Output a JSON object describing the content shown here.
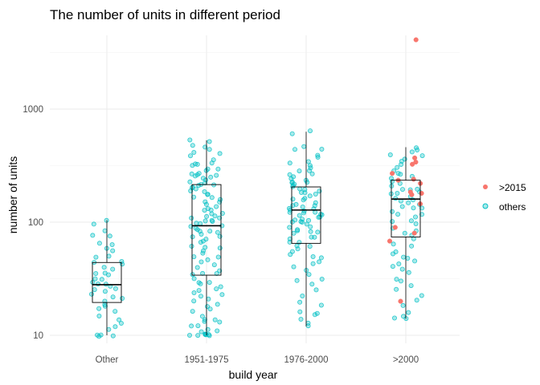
{
  "chart_data": {
    "type": "box_jitter",
    "title": "The number of units in different period",
    "xlabel": "build year",
    "ylabel": "number of units",
    "y_scale": "log10",
    "ylim": [
      8.2,
      5300
    ],
    "y_ticks": [
      10,
      100,
      1000
    ],
    "y_tick_labels": [
      "10",
      "100",
      "1000"
    ],
    "grid": true,
    "legend_position": "right",
    "categories": [
      "Other",
      "1951-1975",
      "1976-2000",
      ">2000"
    ],
    "legend": [
      {
        "label": ">2015",
        "color": "#F8766D"
      },
      {
        "label": "others",
        "color": "#00BFC4"
      }
    ],
    "boxes": [
      {
        "category": "Other",
        "min": 10,
        "q1": 19.5,
        "median": 28,
        "q3": 44,
        "max": 104
      },
      {
        "category": "1951-1975",
        "min": 10,
        "q1": 34,
        "median": 93,
        "q3": 215,
        "max": 530
      },
      {
        "category": "1976-2000",
        "min": 12,
        "q1": 65,
        "median": 128,
        "q3": 205,
        "max": 630
      },
      {
        "category": ">2000",
        "min": 14,
        "q1": 74,
        "median": 160,
        "q3": 235,
        "max": 460
      }
    ],
    "series": [
      {
        "name": ">2015",
        "color": "#F8766D",
        "points": [
          {
            "x": ">2000",
            "y": 4100
          },
          {
            "x": ">2000",
            "y": 370
          },
          {
            "x": ">2000",
            "y": 340
          },
          {
            "x": ">2000",
            "y": 325
          },
          {
            "x": ">2000",
            "y": 270
          },
          {
            "x": ">2000",
            "y": 240
          },
          {
            "x": ">2000",
            "y": 235
          },
          {
            "x": ">2000",
            "y": 220
          },
          {
            "x": ">2000",
            "y": 185
          },
          {
            "x": ">2000",
            "y": 180
          },
          {
            "x": ">2000",
            "y": 175
          },
          {
            "x": ">2000",
            "y": 145
          },
          {
            "x": ">2000",
            "y": 90
          },
          {
            "x": ">2000",
            "y": 80
          },
          {
            "x": ">2000",
            "y": 68
          },
          {
            "x": ">2000",
            "y": 20
          }
        ]
      },
      {
        "name": "others",
        "color": "#00BFC4",
        "groups": [
          {
            "category": "Other",
            "values": [
              104,
              95,
              84,
              78,
              75,
              66,
              62,
              58,
              55,
              50,
              48,
              46,
              44,
              42,
              40,
              38,
              36,
              35,
              34,
              32,
              31,
              30,
              29,
              28,
              27,
              26,
              25,
              24,
              23,
              22,
              21,
              20,
              19,
              18,
              17,
              16,
              15,
              14,
              13,
              12,
              11,
              10,
              10,
              10,
              10
            ]
          },
          {
            "category": "1951-1975",
            "values": [
              530,
              515,
              490,
              470,
              440,
              420,
              400,
              380,
              360,
              340,
              330,
              320,
              310,
              300,
              290,
              280,
              270,
              265,
              260,
              255,
              250,
              245,
              240,
              235,
              230,
              225,
              220,
              215,
              210,
              205,
              200,
              195,
              190,
              185,
              180,
              175,
              170,
              165,
              160,
              155,
              150,
              145,
              140,
              135,
              130,
              125,
              120,
              118,
              115,
              112,
              110,
              108,
              105,
              102,
              100,
              98,
              95,
              93,
              91,
              89,
              87,
              85,
              83,
              80,
              78,
              75,
              73,
              70,
              68,
              65,
              62,
              60,
              58,
              55,
              52,
              50,
              48,
              46,
              44,
              42,
              40,
              38,
              36,
              35,
              34,
              32,
              30,
              29,
              28,
              27,
              26,
              25,
              24,
              23,
              22,
              21,
              20,
              19,
              18,
              17,
              16,
              15,
              14,
              14,
              13,
              13,
              12,
              12,
              11,
              11,
              11,
              10,
              10,
              10,
              10,
              10,
              10,
              10,
              10
            ]
          },
          {
            "category": "1976-2000",
            "values": [
              630,
              600,
              470,
              450,
              430,
              400,
              380,
              350,
              330,
              310,
              300,
              290,
              280,
              270,
              260,
              250,
              240,
              235,
              230,
              225,
              220,
              215,
              210,
              205,
              200,
              195,
              190,
              185,
              180,
              175,
              170,
              165,
              160,
              155,
              150,
              145,
              140,
              137,
              135,
              132,
              130,
              128,
              126,
              124,
              122,
              120,
              118,
              116,
              114,
              112,
              110,
              108,
              106,
              104,
              102,
              100,
              98,
              95,
              92,
              90,
              88,
              85,
              82,
              80,
              78,
              75,
              72,
              70,
              68,
              65,
              62,
              60,
              58,
              55,
              52,
              50,
              48,
              45,
              42,
              40,
              38,
              35,
              32,
              30,
              28,
              25,
              22,
              20,
              18,
              16,
              16,
              15,
              14,
              13,
              12
            ]
          },
          {
            "category": ">2000",
            "values": [
              460,
              440,
              420,
              400,
              380,
              360,
              340,
              320,
              300,
              280,
              270,
              260,
              250,
              240,
              230,
              220,
              210,
              200,
              195,
              190,
              185,
              180,
              175,
              170,
              165,
              160,
              155,
              150,
              145,
              140,
              135,
              130,
              125,
              120,
              115,
              110,
              105,
              100,
              95,
              90,
              85,
              80,
              75,
              70,
              65,
              60,
              55,
              52,
              50,
              48,
              45,
              42,
              40,
              38,
              35,
              32,
              30,
              28,
              25,
              22,
              20,
              18,
              16,
              15,
              14,
              14
            ]
          }
        ]
      }
    ]
  }
}
